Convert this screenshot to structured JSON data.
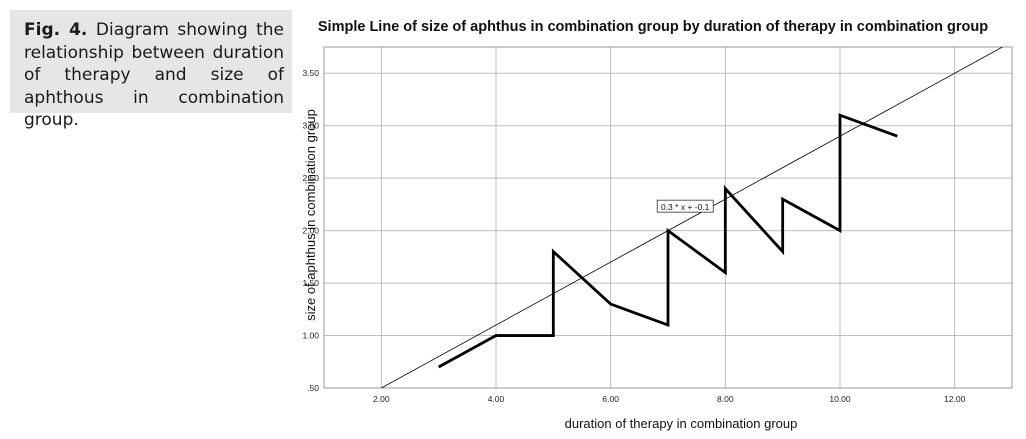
{
  "caption": {
    "label": "Fig. 4.",
    "text": "Diagram showing the relationship between duration of therapy and size of aphthous in combination group."
  },
  "chart_data": {
    "type": "line",
    "title": "Simple Line of size of aphthus in combination group by duration of therapy in combination group",
    "xlabel": "duration of therapy in combination group",
    "ylabel": "size of aphthus in combination group",
    "xlim": [
      1.0,
      13.0
    ],
    "ylim": [
      0.5,
      3.75
    ],
    "xticks": [
      2,
      4,
      6,
      8,
      10,
      12
    ],
    "xtick_labels": [
      "2.00",
      "4.00",
      "6.00",
      "8.00",
      "10.00",
      "12.00"
    ],
    "yticks": [
      0.5,
      1.0,
      1.5,
      2.0,
      2.5,
      3.0,
      3.5
    ],
    "ytick_labels": [
      ".50",
      "1.00",
      "1.50",
      "2.00",
      "2.50",
      "3.00",
      "3.50"
    ],
    "grid": true,
    "series": [
      {
        "x": [
          3,
          4,
          5,
          5,
          6,
          7,
          7,
          8,
          8,
          9,
          9,
          10,
          10,
          11
        ],
        "y": [
          0.7,
          1.0,
          1.0,
          1.8,
          1.3,
          1.1,
          2.0,
          1.6,
          2.4,
          1.8,
          2.3,
          2.0,
          3.1,
          2.9
        ]
      }
    ],
    "fit_line": {
      "slope": 0.3,
      "intercept": -0.1,
      "label": "0.3 * x + -0.1",
      "label_x": 7.3
    },
    "colors": {
      "line": "#000000",
      "fit": "#000000",
      "grid": "#bdbdbd"
    }
  }
}
